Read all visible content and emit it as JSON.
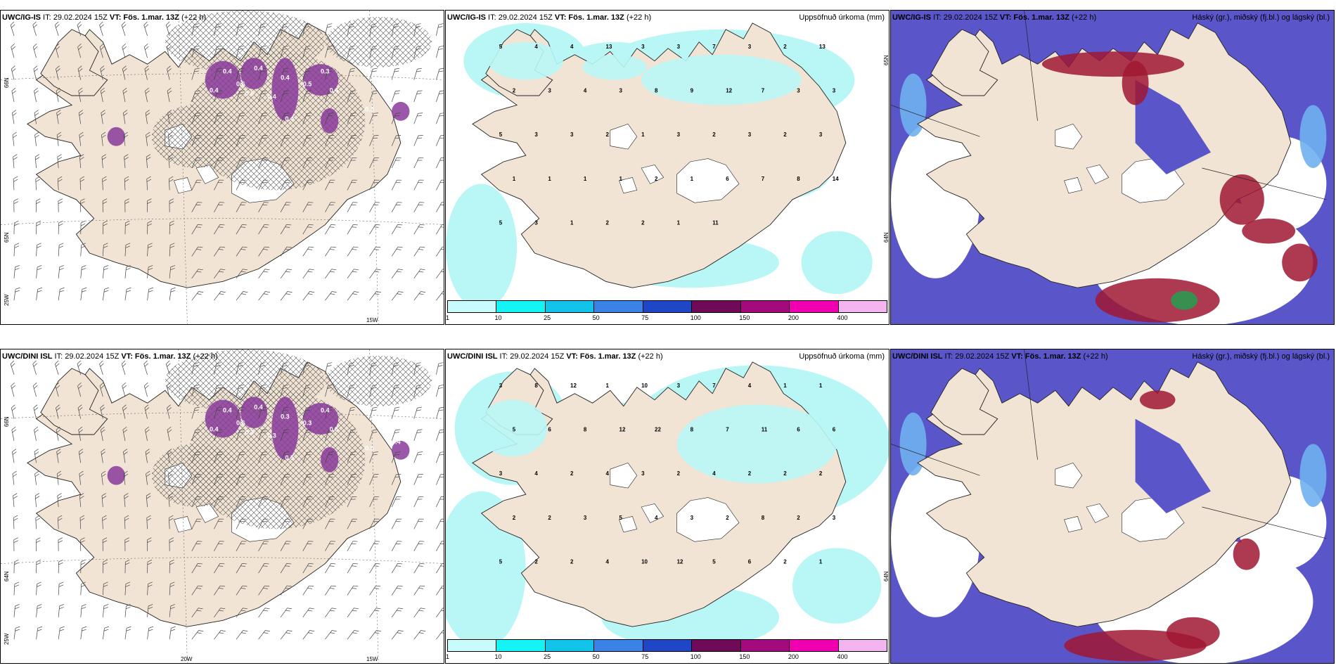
{
  "colors": {
    "land": "#f2e4d4",
    "sea": "#ffffff",
    "precip_light": "#b9f6f6",
    "cloud_low": "#5a55c9",
    "cloud_high": "#a01832",
    "icing": "#8a3a9a"
  },
  "panels": [
    {
      "id": "p1",
      "row": 0,
      "col": 0,
      "kind": "wind",
      "model": "UWC/IG-IS",
      "it_label": "IT: 29.02.2024 15Z",
      "vt_label": "VT: Fös. 1.mar. 13Z",
      "lead": "(+22 h)",
      "right_title": "",
      "axis_labels": [
        "66N",
        "65N",
        "25W",
        "15W"
      ],
      "icing_values": [
        "0.4",
        "0.6",
        "0.4",
        "0.4",
        "0.5",
        "0.3",
        "0.4",
        "0.4",
        "0.6",
        "0.4",
        "0.4",
        "0.3"
      ]
    },
    {
      "id": "p2",
      "row": 0,
      "col": 1,
      "kind": "precip",
      "model": "UWC/IG-IS",
      "it_label": "IT: 29.02.2024 15Z",
      "vt_label": "VT: Fös. 1.mar. 13Z",
      "lead": "(+22 h)",
      "right_title": "Uppsöfnuð úrkoma (mm)",
      "axis_labels": [
        "65N",
        "64N"
      ],
      "precip_values": [
        "5",
        "4",
        "4",
        "13",
        "3",
        "3",
        "7",
        "3",
        "2",
        "13",
        "2",
        "3",
        "4",
        "3",
        "8",
        "9",
        "12",
        "7",
        "3",
        "3",
        "5",
        "3",
        "3",
        "2",
        "1",
        "3",
        "2",
        "3",
        "2",
        "3",
        "1",
        "1",
        "1",
        "1",
        "2",
        "1",
        "6",
        "7",
        "8",
        "14",
        "5",
        "3",
        "1",
        "2",
        "2",
        "1",
        "11"
      ]
    },
    {
      "id": "p3",
      "row": 0,
      "col": 2,
      "kind": "cloud",
      "model": "UWC/IG-IS",
      "it_label": "IT: 29.02.2024 15Z",
      "vt_label": "VT: Fös. 1.mar. 13Z",
      "lead": "(+22 h)",
      "right_title": "Háský (gr.), miðský (fj.bl.) og lágský (bl.)",
      "axis_labels": []
    },
    {
      "id": "p4",
      "row": 1,
      "col": 0,
      "kind": "wind",
      "model": "UWC/DINI ISL",
      "it_label": "IT: 29.02.2024 15Z",
      "vt_label": "VT: Fös. 1.mar. 13Z",
      "lead": "(+22 h)",
      "right_title": "",
      "axis_labels": [
        "66N",
        "64N",
        "25W",
        "20W",
        "15W"
      ],
      "icing_values": [
        "0.4",
        "0.6",
        "0.4",
        "0.3",
        "0.3",
        "0.4",
        "0.5",
        "0.5",
        "0.3",
        "0.4",
        "0.3",
        "0.5",
        "0.4"
      ]
    },
    {
      "id": "p5",
      "row": 1,
      "col": 1,
      "kind": "precip",
      "model": "UWC/DINI ISL",
      "it_label": "IT: 29.02.2024 15Z",
      "vt_label": "VT: Fös. 1.mar. 13Z",
      "lead": "(+22 h)",
      "right_title": "Uppsöfnuð úrkoma (mm)",
      "axis_labels": [
        "64N"
      ],
      "precip_values": [
        "3",
        "8",
        "12",
        "1",
        "10",
        "3",
        "7",
        "4",
        "1",
        "1",
        "5",
        "6",
        "8",
        "12",
        "22",
        "8",
        "7",
        "11",
        "6",
        "6",
        "3",
        "4",
        "2",
        "4",
        "3",
        "2",
        "4",
        "2",
        "2",
        "2",
        "2",
        "2",
        "3",
        "5",
        "4",
        "3",
        "2",
        "8",
        "2",
        "3",
        "5",
        "2",
        "2",
        "4",
        "10",
        "12",
        "5",
        "6",
        "2",
        "1"
      ]
    },
    {
      "id": "p6",
      "row": 1,
      "col": 2,
      "kind": "cloud",
      "model": "UWC/DINI ISL",
      "it_label": "IT: 29.02.2024 15Z",
      "vt_label": "VT: Fös. 1.mar. 13Z",
      "lead": "(+22 h)",
      "right_title": "Háský (gr.), miðský (fj.bl.) og lágský (bl.)",
      "axis_labels": []
    }
  ],
  "colorbar": {
    "colors": [
      "#c8fbfb",
      "#14f4f4",
      "#12c4ea",
      "#3a82e6",
      "#2046c8",
      "#6e0a58",
      "#a40a7e",
      "#f000b0",
      "#f4b4f0"
    ],
    "labels": [
      "1",
      "10",
      "25",
      "50",
      "75",
      "100",
      "150",
      "200",
      "400"
    ]
  }
}
